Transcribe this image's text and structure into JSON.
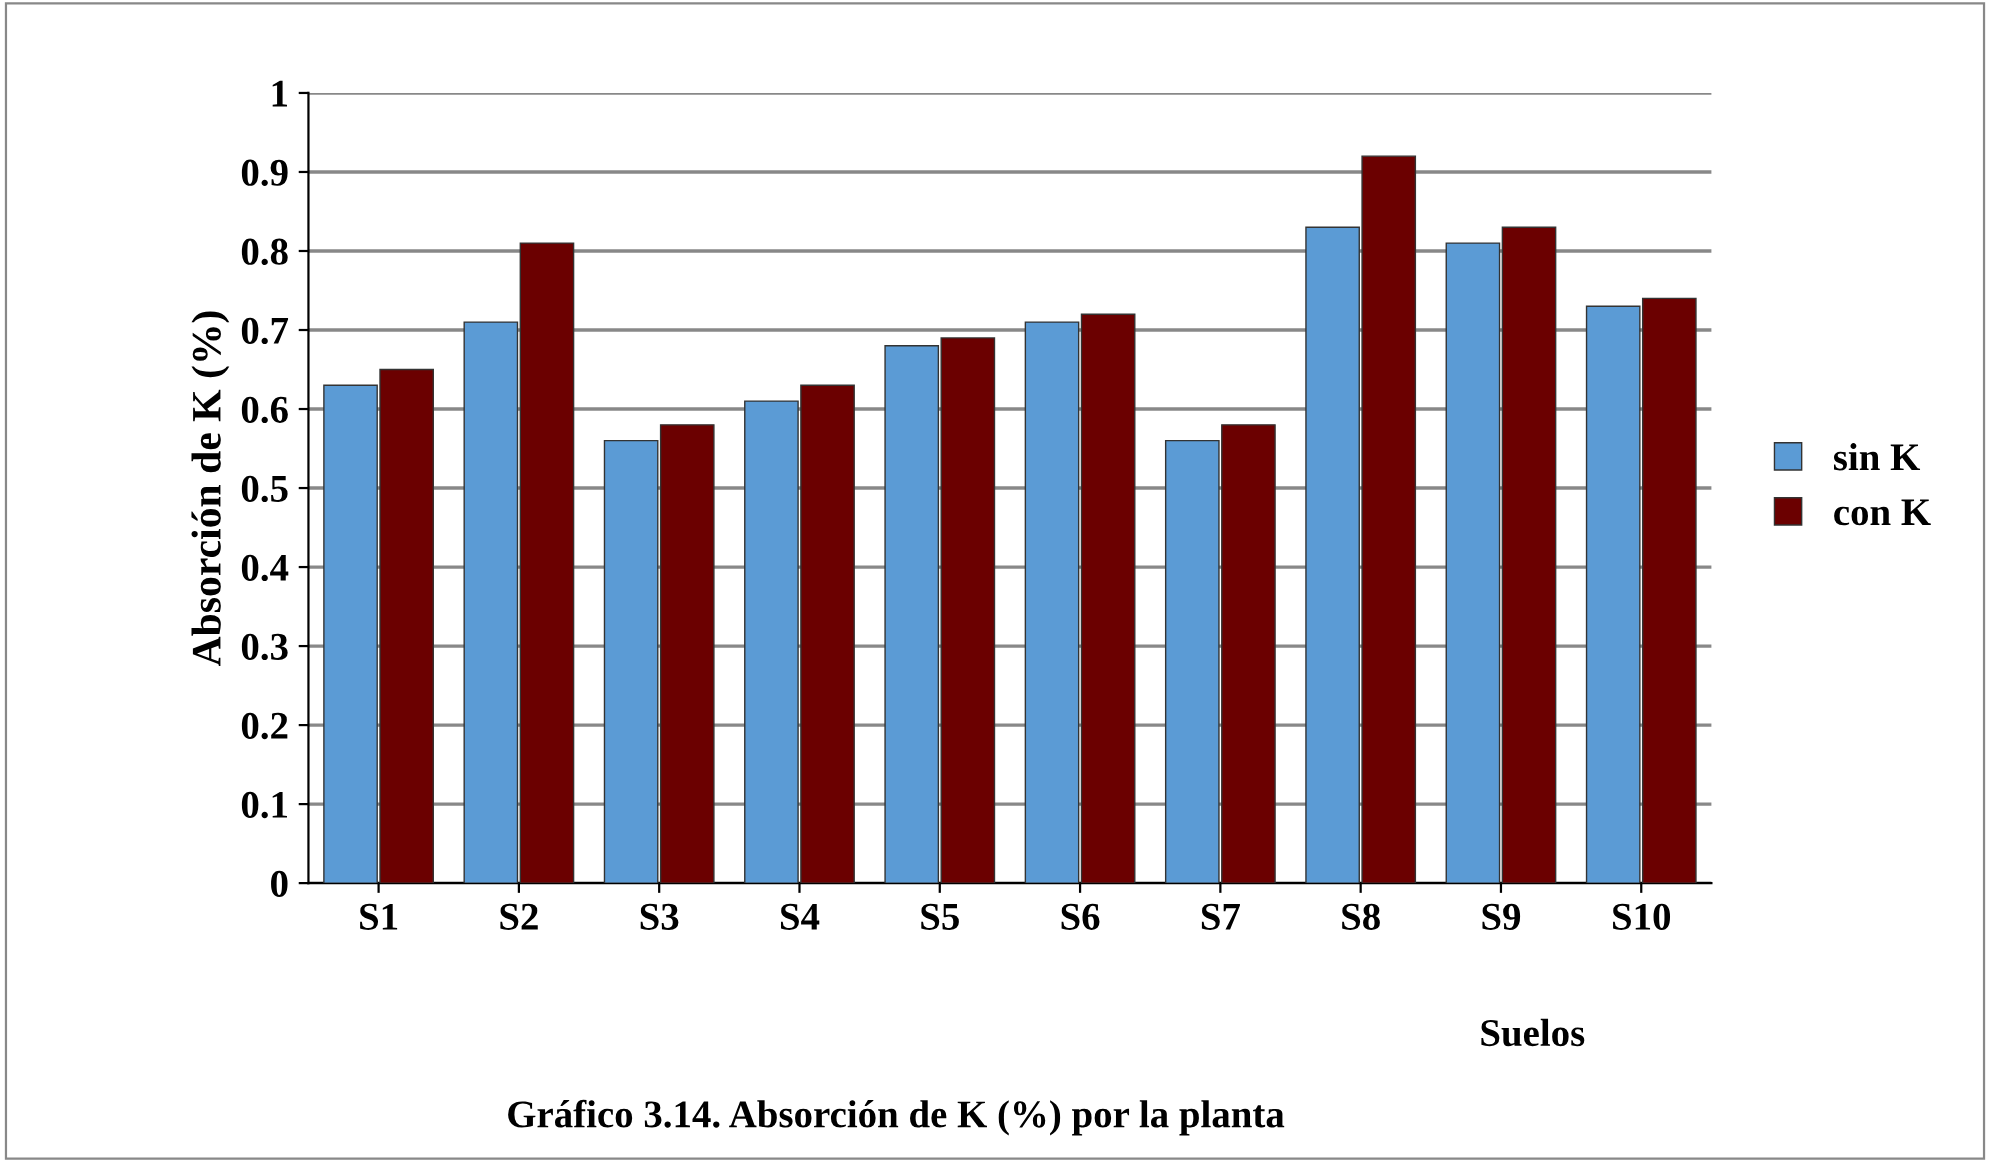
{
  "chart_data": {
    "type": "bar",
    "title": "Gráfico 3.14. Absorción de K (%) por la planta",
    "xlabel": "Suelos",
    "ylabel": "Absorción de K (%)",
    "categories": [
      "S1",
      "S2",
      "S3",
      "S4",
      "S5",
      "S6",
      "S7",
      "S8",
      "S9",
      "S10"
    ],
    "series": [
      {
        "name": "sin K",
        "color": "#5b9bd5",
        "values": [
          0.63,
          0.71,
          0.56,
          0.61,
          0.68,
          0.71,
          0.56,
          0.83,
          0.81,
          0.73
        ]
      },
      {
        "name": "con K",
        "color": "#6b0000",
        "values": [
          0.65,
          0.81,
          0.58,
          0.63,
          0.69,
          0.72,
          0.58,
          0.92,
          0.83,
          0.74
        ]
      }
    ],
    "ylim": [
      0,
      1
    ],
    "yticks": [
      0,
      0.1,
      0.2,
      0.3,
      0.4,
      0.5,
      0.6,
      0.7,
      0.8,
      0.9,
      1
    ],
    "grid": "y",
    "legend": "right"
  }
}
